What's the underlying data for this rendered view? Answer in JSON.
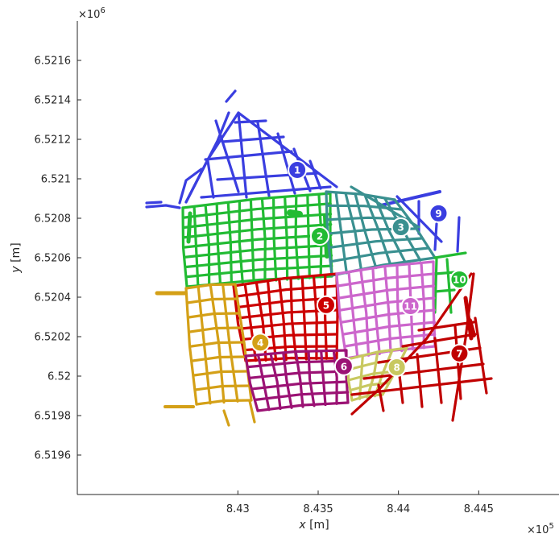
{
  "chart_data": {
    "type": "scatter",
    "title": "",
    "xlabel_var": "x",
    "xlabel_unit": " [m]",
    "ylabel_var": "y",
    "ylabel_unit": " [m]",
    "x_exponent": "×10^5",
    "y_exponent": "×10^6",
    "xlim": [
      842000,
      845000
    ],
    "ylim": [
      6519400,
      6521800
    ],
    "x_ticks": [
      843000,
      843500,
      844000,
      844500
    ],
    "x_tick_labels": [
      "8.43",
      "8.435",
      "8.44",
      "8.445"
    ],
    "y_ticks": [
      6519600,
      6519800,
      6520000,
      6520200,
      6520400,
      6520600,
      6520800,
      6521000,
      6521200,
      6521400,
      6521600
    ],
    "y_tick_labels": [
      "6.5196",
      "6.5198",
      "6.52",
      "6.5202",
      "6.5204",
      "6.5206",
      "6.5208",
      "6.521",
      "6.5212",
      "6.5214",
      "6.5216"
    ],
    "grid": false,
    "legend": "none",
    "clusters": [
      {
        "label": "1",
        "color": "#3a3ee0",
        "center": [
          843370,
          6521045
        ]
      },
      {
        "label": "2",
        "color": "#22bb33",
        "center": [
          843510,
          6520710
        ]
      },
      {
        "label": "3",
        "color": "#3a9090",
        "center": [
          844015,
          6520755
        ]
      },
      {
        "label": "4",
        "color": "#d4a017",
        "center": [
          843140,
          6520170
        ]
      },
      {
        "label": "5",
        "color": "#cc0000",
        "center": [
          843550,
          6520360
        ]
      },
      {
        "label": "6",
        "color": "#9b1274",
        "center": [
          843660,
          6520050
        ]
      },
      {
        "label": "7",
        "color": "#c00000",
        "center": [
          844380,
          6520115
        ]
      },
      {
        "label": "8",
        "color": "#c8c860",
        "center": [
          843990,
          6520045
        ]
      },
      {
        "label": "9",
        "color": "#3a3ee0",
        "center": [
          844250,
          6520825
        ]
      },
      {
        "label": "10",
        "color": "#22bb33",
        "center": [
          844380,
          6520490
        ]
      },
      {
        "label": "11",
        "color": "#cc66cc",
        "center": [
          844075,
          6520355
        ]
      }
    ]
  }
}
